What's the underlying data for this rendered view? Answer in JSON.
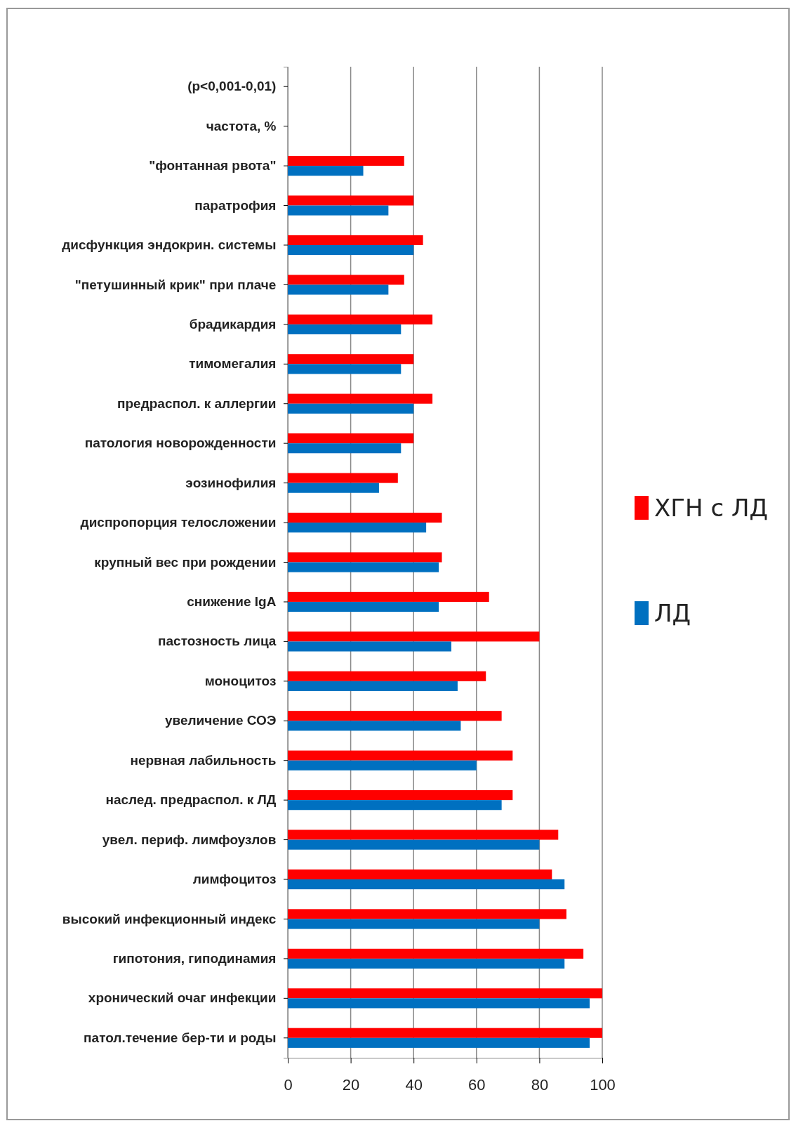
{
  "chart_data": {
    "type": "bar",
    "orientation": "horizontal",
    "categories": [
      "(p<0,001-0,01)",
      "частота, %",
      "\"фонтанная рвота\"",
      "паратрофия",
      "дисфункция эндокрин. системы",
      "\"петушинный  крик\" при плаче",
      "брадикардия",
      "тимомегалия",
      "предраспол. к аллергии",
      "патология новорожденности",
      "эозинофилия",
      "диспропорция телосложении",
      "крупный вес при рождении",
      "снижение IgA",
      "пастозность лица",
      "моноцитоз",
      "увеличение  СОЭ",
      "нервная  лабильность",
      "наслед. предраспол.  к ЛД",
      "увел.  периф.  лимфоузлов",
      "лимфоцитоз",
      "высокий  инфекционный  индекс",
      "гипотония,  гиподинамия",
      "хронический  очаг  инфекции",
      "патол.течение  бер-ти  и роды"
    ],
    "series": [
      {
        "name": "ХГН с ЛД",
        "color": "#ff0000",
        "values": [
          null,
          null,
          37,
          40,
          43,
          37,
          46,
          40,
          46,
          40,
          35,
          49,
          49,
          64,
          80,
          63,
          68,
          71.5,
          71.5,
          86,
          84,
          88.6,
          94,
          100,
          100
        ]
      },
      {
        "name": "ЛД",
        "color": "#0070c0",
        "values": [
          null,
          null,
          24,
          32,
          40,
          32,
          36,
          36,
          40,
          36,
          29,
          44,
          48,
          48,
          52,
          54,
          55,
          60,
          68,
          80,
          88,
          80,
          88,
          96,
          96
        ]
      }
    ],
    "xlim": [
      0,
      100
    ],
    "xticks": [
      0,
      20,
      40,
      60,
      80,
      100
    ],
    "grid": "x",
    "legend": "right"
  }
}
